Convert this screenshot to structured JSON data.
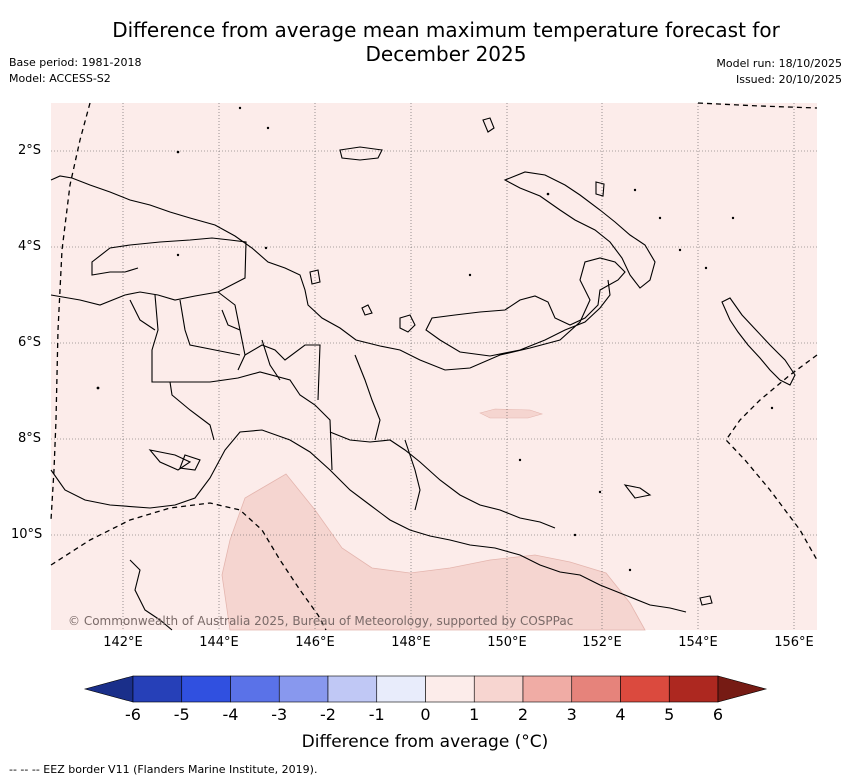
{
  "title": "Difference from average mean maximum temperature forecast for December 2025",
  "meta_left": [
    "Base period: 1981-2018",
    "Model: ACCESS-S2"
  ],
  "meta_right": [
    "Model run: 18/10/2025",
    "Issued: 20/10/2025"
  ],
  "lat_labels": [
    "2°S",
    "4°S",
    "6°S",
    "8°S",
    "10°S"
  ],
  "lon_labels": [
    "142°E",
    "144°E",
    "146°E",
    "148°E",
    "150°E",
    "152°E",
    "154°E",
    "156°E"
  ],
  "copyright": "© Commonwealth of Australia 2025, Bureau of Meteorology, supported by COSPPac",
  "colorbar": {
    "ticks": [
      "-6",
      "-5",
      "-4",
      "-3",
      "-2",
      "-1",
      "0",
      "1",
      "2",
      "3",
      "4",
      "5",
      "6"
    ],
    "colors": [
      "#1a2f8a",
      "#2640b8",
      "#3050e0",
      "#5a72e8",
      "#8898ee",
      "#c0c8f5",
      "#e8ecfb",
      "#fcecea",
      "#f7d5d0",
      "#f0aca5",
      "#e6837b",
      "#db4a3e",
      "#ad2820",
      "#761b14"
    ],
    "label": "Difference from average (°C)"
  },
  "footer": "-- -- -- EEZ border V11 (Flanders Marine Institute, 2019).",
  "colors": {
    "background_anomaly": "#fcecea",
    "anomaly_1_2": "#f5d5d0",
    "coastline": "#000000",
    "grid": "#555555"
  }
}
